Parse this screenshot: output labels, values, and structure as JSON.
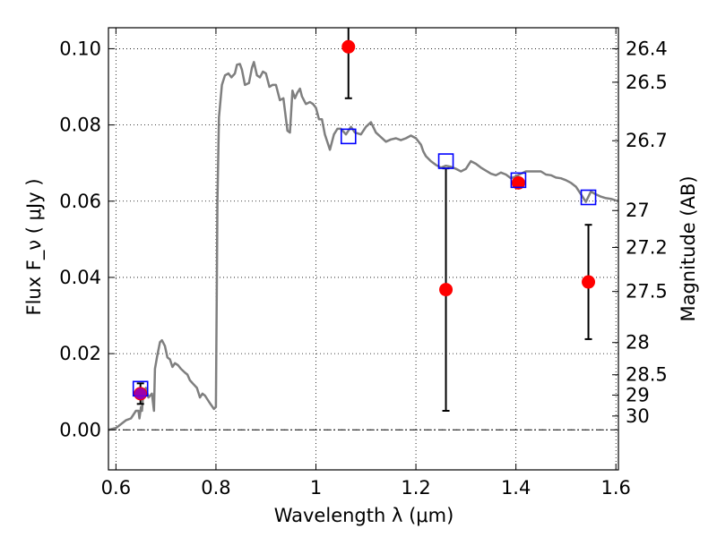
{
  "chart_data": {
    "type": "scatter",
    "xlabel": "Wavelength  λ (μm)",
    "ylabel": "Flux  F_ν  ( μJy )",
    "y2label": "Magnitude (AB)",
    "xlim": [
      0.585,
      1.605
    ],
    "ylim": [
      -0.0105,
      0.1055
    ],
    "xticks": [
      0.6,
      0.8,
      1.0,
      1.2,
      1.4,
      1.6
    ],
    "xtick_labels": [
      "0.6",
      "0.8",
      "1",
      "1.2",
      "1.4",
      "1.6"
    ],
    "yticks": [
      0.0,
      0.02,
      0.04,
      0.06,
      0.08,
      0.1
    ],
    "ytick_labels": [
      "0.00",
      "0.02",
      "0.04",
      "0.06",
      "0.08",
      "0.10"
    ],
    "mag_ticks": [
      {
        "mag": 26.4,
        "label": "26.4"
      },
      {
        "mag": 26.5,
        "label": "26.5"
      },
      {
        "mag": 26.7,
        "label": "26.7"
      },
      {
        "mag": 27.0,
        "label": "27"
      },
      {
        "mag": 27.2,
        "label": "27.2"
      },
      {
        "mag": 27.5,
        "label": "27.5"
      },
      {
        "mag": 28.0,
        "label": "28"
      },
      {
        "mag": 28.5,
        "label": "28.5"
      },
      {
        "mag": 29.0,
        "label": "29"
      },
      {
        "mag": 30.0,
        "label": "30"
      }
    ],
    "grid": true,
    "series": [
      {
        "kind": "line",
        "color": "#7f7f7f",
        "points": [
          [
            0.585,
            0.0
          ],
          [
            0.6,
            0.0005
          ],
          [
            0.62,
            0.0025
          ],
          [
            0.63,
            0.003
          ],
          [
            0.64,
            0.005
          ],
          [
            0.645,
            0.005
          ],
          [
            0.647,
            0.003
          ],
          [
            0.65,
            0.006
          ],
          [
            0.652,
            0.005
          ],
          [
            0.655,
            0.01
          ],
          [
            0.66,
            0.011
          ],
          [
            0.665,
            0.0085
          ],
          [
            0.672,
            0.0095
          ],
          [
            0.676,
            0.005
          ],
          [
            0.678,
            0.016
          ],
          [
            0.682,
            0.019
          ],
          [
            0.688,
            0.023
          ],
          [
            0.692,
            0.0235
          ],
          [
            0.698,
            0.022
          ],
          [
            0.703,
            0.019
          ],
          [
            0.708,
            0.0185
          ],
          [
            0.713,
            0.0165
          ],
          [
            0.718,
            0.0175
          ],
          [
            0.724,
            0.017
          ],
          [
            0.73,
            0.016
          ],
          [
            0.738,
            0.015
          ],
          [
            0.743,
            0.0145
          ],
          [
            0.748,
            0.013
          ],
          [
            0.755,
            0.012
          ],
          [
            0.762,
            0.011
          ],
          [
            0.768,
            0.0085
          ],
          [
            0.773,
            0.0095
          ],
          [
            0.778,
            0.009
          ],
          [
            0.788,
            0.007
          ],
          [
            0.796,
            0.0055
          ],
          [
            0.8,
            0.006
          ],
          [
            0.803,
            0.06
          ],
          [
            0.806,
            0.082
          ],
          [
            0.812,
            0.0905
          ],
          [
            0.818,
            0.093
          ],
          [
            0.825,
            0.0935
          ],
          [
            0.831,
            0.0925
          ],
          [
            0.838,
            0.0935
          ],
          [
            0.842,
            0.0958
          ],
          [
            0.848,
            0.096
          ],
          [
            0.852,
            0.0945
          ],
          [
            0.858,
            0.0905
          ],
          [
            0.866,
            0.091
          ],
          [
            0.872,
            0.095
          ],
          [
            0.876,
            0.0965
          ],
          [
            0.882,
            0.093
          ],
          [
            0.888,
            0.0925
          ],
          [
            0.894,
            0.094
          ],
          [
            0.9,
            0.0935
          ],
          [
            0.907,
            0.09
          ],
          [
            0.913,
            0.0905
          ],
          [
            0.92,
            0.0905
          ],
          [
            0.928,
            0.0865
          ],
          [
            0.935,
            0.087
          ],
          [
            0.943,
            0.0785
          ],
          [
            0.948,
            0.078
          ],
          [
            0.953,
            0.089
          ],
          [
            0.958,
            0.087
          ],
          [
            0.963,
            0.0885
          ],
          [
            0.968,
            0.0895
          ],
          [
            0.972,
            0.0875
          ],
          [
            0.98,
            0.0855
          ],
          [
            0.988,
            0.086
          ],
          [
            0.994,
            0.0855
          ],
          [
            1.0,
            0.0845
          ],
          [
            1.006,
            0.0815
          ],
          [
            1.012,
            0.0815
          ],
          [
            1.018,
            0.0775
          ],
          [
            1.023,
            0.0755
          ],
          [
            1.028,
            0.0735
          ],
          [
            1.036,
            0.0775
          ],
          [
            1.043,
            0.079
          ],
          [
            1.05,
            0.079
          ],
          [
            1.06,
            0.0775
          ],
          [
            1.07,
            0.0795
          ],
          [
            1.078,
            0.078
          ],
          [
            1.09,
            0.0775
          ],
          [
            1.1,
            0.0795
          ],
          [
            1.11,
            0.0807
          ],
          [
            1.12,
            0.078
          ],
          [
            1.13,
            0.0768
          ],
          [
            1.14,
            0.0756
          ],
          [
            1.15,
            0.0762
          ],
          [
            1.16,
            0.0765
          ],
          [
            1.17,
            0.076
          ],
          [
            1.18,
            0.0765
          ],
          [
            1.19,
            0.0772
          ],
          [
            1.2,
            0.0765
          ],
          [
            1.21,
            0.0748
          ],
          [
            1.215,
            0.073
          ],
          [
            1.22,
            0.0718
          ],
          [
            1.23,
            0.0705
          ],
          [
            1.24,
            0.0695
          ],
          [
            1.25,
            0.0688
          ],
          [
            1.26,
            0.0693
          ],
          [
            1.27,
            0.069
          ],
          [
            1.28,
            0.0685
          ],
          [
            1.29,
            0.0678
          ],
          [
            1.3,
            0.0685
          ],
          [
            1.31,
            0.0705
          ],
          [
            1.32,
            0.0698
          ],
          [
            1.33,
            0.0688
          ],
          [
            1.34,
            0.068
          ],
          [
            1.35,
            0.0672
          ],
          [
            1.36,
            0.0668
          ],
          [
            1.37,
            0.0675
          ],
          [
            1.38,
            0.067
          ],
          [
            1.39,
            0.066
          ],
          [
            1.4,
            0.0665
          ],
          [
            1.41,
            0.0672
          ],
          [
            1.42,
            0.0678
          ],
          [
            1.43,
            0.0678
          ],
          [
            1.44,
            0.0678
          ],
          [
            1.45,
            0.0678
          ],
          [
            1.46,
            0.067
          ],
          [
            1.47,
            0.0668
          ],
          [
            1.48,
            0.0662
          ],
          [
            1.49,
            0.066
          ],
          [
            1.5,
            0.0655
          ],
          [
            1.51,
            0.0648
          ],
          [
            1.52,
            0.0638
          ],
          [
            1.53,
            0.0618
          ],
          [
            1.54,
            0.0598
          ],
          [
            1.55,
            0.0625
          ],
          [
            1.56,
            0.0618
          ],
          [
            1.57,
            0.0612
          ],
          [
            1.58,
            0.0608
          ],
          [
            1.59,
            0.0606
          ],
          [
            1.605,
            0.06
          ]
        ]
      },
      {
        "kind": "scatter",
        "marker": "square-open",
        "color": "#0000ff",
        "x": [
          0.649,
          1.065,
          1.26,
          1.405,
          1.545
        ],
        "y": [
          0.0108,
          0.077,
          0.0705,
          0.0655,
          0.061
        ]
      },
      {
        "kind": "scatter",
        "marker": "circle",
        "color": "#ff0000",
        "x": [
          0.649,
          1.065,
          1.26,
          1.405,
          1.545
        ],
        "y": [
          0.0095,
          0.1005,
          0.0368,
          0.0648,
          0.0388
        ],
        "yerr_low": [
          0.0027,
          0.0135,
          0.0318,
          0.0,
          0.015
        ],
        "yerr_high": [
          0.0027,
          0.0135,
          0.0318,
          0.0,
          0.015
        ]
      }
    ]
  }
}
